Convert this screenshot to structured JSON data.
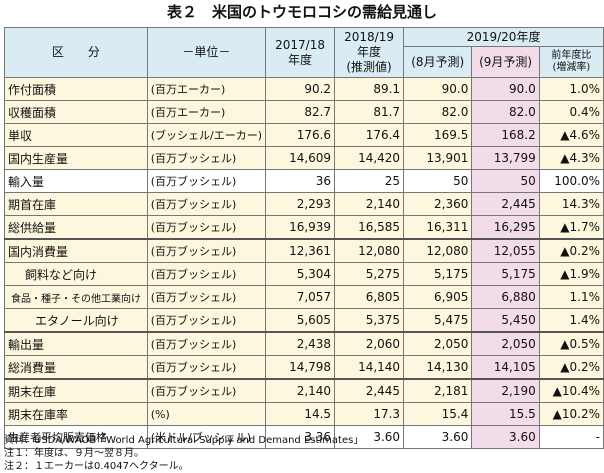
{
  "title": "表２　米国のトウモロコシの需給見通し",
  "header": {
    "item": "区　　分",
    "unit": "－単位－",
    "col_2017": "2017/18\n年度",
    "col_2018": "2018/19\n年度\n(推測値)",
    "col_2019_group": "2019/20年度",
    "col_aug": "(8月予測)",
    "col_sep": "(9月予測)",
    "col_yoy": "前年度比\n(増減率)"
  },
  "rows": [
    {
      "item": "作付面積",
      "unit": "(百万エーカー)",
      "v2017": "90.2",
      "v2018": "89.1",
      "aug": "90.0",
      "sep": "90.0",
      "yoy": "1.0%"
    },
    {
      "item": "収穫面積",
      "unit": "(百万エーカー)",
      "v2017": "82.7",
      "v2018": "81.7",
      "aug": "82.0",
      "sep": "82.0",
      "yoy": "0.4%"
    },
    {
      "item": "単収",
      "unit": "(ブッシェル/エーカー)",
      "v2017": "176.6",
      "v2018": "176.4",
      "aug": "169.5",
      "sep": "168.2",
      "yoy": "▲4.6%"
    },
    {
      "item": "国内生産量",
      "unit": "(百万ブッシェル)",
      "v2017": "14,609",
      "v2018": "14,420",
      "aug": "13,901",
      "sep": "13,799",
      "yoy": "▲4.3%"
    },
    {
      "item": "輸入量",
      "unit": "(百万ブッシェル)",
      "v2017": "36",
      "v2018": "25",
      "aug": "50",
      "sep": "50",
      "yoy": "100.0%"
    },
    {
      "item": "期首在庫",
      "unit": "(百万ブッシェル)",
      "v2017": "2,293",
      "v2018": "2,140",
      "aug": "2,360",
      "sep": "2,445",
      "yoy": "14.3%"
    },
    {
      "item": "総供給量",
      "unit": "(百万ブッシェル)",
      "v2017": "16,939",
      "v2018": "16,585",
      "aug": "16,311",
      "sep": "16,295",
      "yoy": "▲1.7%"
    },
    {
      "item": "国内消費量",
      "unit": "(百万ブッシェル)",
      "v2017": "12,361",
      "v2018": "12,080",
      "aug": "12,080",
      "sep": "12,055",
      "yoy": "▲0.2%"
    },
    {
      "item": "飼料など向け",
      "unit": "(百万ブッシェル)",
      "v2017": "5,304",
      "v2018": "5,275",
      "aug": "5,175",
      "sep": "5,175",
      "yoy": "▲1.9%"
    },
    {
      "item": "食品・種子・その他工業向け",
      "unit": "(百万ブッシェル)",
      "v2017": "7,057",
      "v2018": "6,805",
      "aug": "6,905",
      "sep": "6,880",
      "yoy": "1.1%"
    },
    {
      "item": "エタノール向け",
      "unit": "(百万ブッシェル)",
      "v2017": "5,605",
      "v2018": "5,375",
      "aug": "5,475",
      "sep": "5,450",
      "yoy": "1.4%"
    },
    {
      "item": "輸出量",
      "unit": "(百万ブッシェル)",
      "v2017": "2,438",
      "v2018": "2,060",
      "aug": "2,050",
      "sep": "2,050",
      "yoy": "▲0.5%"
    },
    {
      "item": "総消費量",
      "unit": "(百万ブッシェル)",
      "v2017": "14,798",
      "v2018": "14,140",
      "aug": "14,130",
      "sep": "14,105",
      "yoy": "▲0.2%"
    },
    {
      "item": "期末在庫",
      "unit": "(百万ブッシェル)",
      "v2017": "2,140",
      "v2018": "2,445",
      "aug": "2,181",
      "sep": "2,190",
      "yoy": "▲10.4%"
    },
    {
      "item": "期末在庫率",
      "unit": "(%)",
      "v2017": "14.5",
      "v2018": "17.3",
      "aug": "15.4",
      "sep": "15.5",
      "yoy": "▲10.2%"
    },
    {
      "item": "生産者平均販売価格",
      "unit": "(米ドル/ブッシェル)",
      "v2017": "3.36",
      "v2018": "3.60",
      "aug": "3.60",
      "sep": "3.60",
      "yoy": "-"
    }
  ],
  "notes": [
    "資料：USDA/WAOB「World Agricultural Supply and Demand Estimates」",
    "注１：年度は、９月～翌８月。",
    "注２：１エーカーは0.4047ヘクタール。"
  ],
  "colors": {
    "header_bg": "#d9ecf4",
    "row_bg": "#fdf8dd",
    "highlight_bg": "#f2dcea"
  }
}
